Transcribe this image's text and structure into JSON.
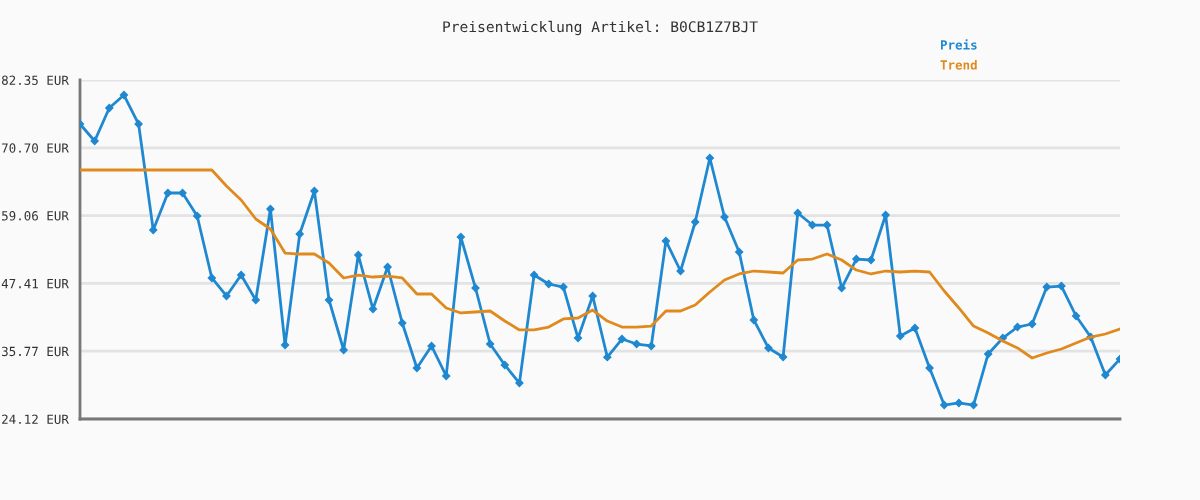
{
  "chart_data": {
    "type": "line",
    "title": "Preisentwicklung Artikel: B0CB1Z7BJT",
    "categories": [
      null,
      null,
      null,
      null,
      null,
      null,
      null,
      null,
      null,
      null,
      null,
      null,
      null,
      null,
      null,
      null,
      null,
      null,
      null,
      null,
      null,
      null,
      null,
      null,
      null,
      null,
      null,
      null,
      null,
      null,
      null,
      null,
      null,
      null,
      null,
      null,
      null,
      null,
      null,
      null,
      null,
      null,
      null,
      null,
      null,
      null,
      null,
      null,
      null,
      null,
      null,
      null,
      null,
      null,
      null,
      null,
      null,
      null,
      null,
      null,
      null,
      null,
      null,
      null,
      null,
      null,
      null,
      null,
      null,
      null,
      null,
      null
    ],
    "series": [
      {
        "name": "Preis",
        "color": "#1f88d0",
        "marker": "diamond",
        "values": [
          74.79,
          71.87,
          77.54,
          79.77,
          74.79,
          56.58,
          62.94,
          62.94,
          58.99,
          48.34,
          45.25,
          48.85,
          44.56,
          60.19,
          36.83,
          55.9,
          63.28,
          44.56,
          35.97,
          52.29,
          43.01,
          50.23,
          40.61,
          32.88,
          36.66,
          31.51,
          55.38,
          46.62,
          37.0,
          33.4,
          30.3,
          48.85,
          47.31,
          46.79,
          38.03,
          45.25,
          34.74,
          37.86,
          37.0,
          36.66,
          54.7,
          49.54,
          57.96,
          68.95,
          58.82,
          52.81,
          41.13,
          36.32,
          34.77,
          59.5,
          57.44,
          57.44,
          46.62,
          51.6,
          51.43,
          59.16,
          38.38,
          39.75,
          32.88,
          26.52,
          26.87,
          26.52,
          35.29,
          38.03,
          39.92,
          40.44,
          46.79,
          46.96,
          41.81,
          38.2,
          31.68,
          34.43
        ]
      },
      {
        "name": "Trend",
        "color": "#e08a1e",
        "marker": "none",
        "values": [
          66.89,
          66.89,
          66.89,
          66.89,
          66.89,
          66.89,
          66.89,
          66.89,
          66.89,
          66.89,
          64.14,
          61.74,
          58.47,
          56.76,
          52.63,
          52.46,
          52.46,
          50.92,
          48.34,
          48.85,
          48.51,
          48.68,
          48.34,
          45.59,
          45.59,
          43.19,
          42.33,
          42.5,
          42.67,
          40.95,
          39.41,
          39.41,
          39.92,
          41.3,
          41.47,
          42.84,
          40.95,
          39.92,
          39.92,
          40.09,
          42.67,
          42.67,
          43.7,
          45.93,
          47.99,
          49.03,
          49.54,
          49.37,
          49.2,
          51.43,
          51.6,
          52.46,
          51.43,
          49.71,
          49.03,
          49.54,
          49.37,
          49.54,
          49.37,
          46.11,
          43.19,
          40.09,
          38.89,
          37.52,
          36.32,
          34.6,
          35.46,
          36.14,
          37.17,
          38.2,
          38.72,
          39.58
        ]
      }
    ],
    "ylim": [
      24.12,
      82.35
    ],
    "yticks": [
      {
        "value": 24.12,
        "label": "24.12 EUR"
      },
      {
        "value": 35.77,
        "label": "35.77 EUR"
      },
      {
        "value": 47.41,
        "label": "47.41 EUR"
      },
      {
        "value": 59.06,
        "label": "59.06 EUR"
      },
      {
        "value": 70.7,
        "label": "70.70 EUR"
      },
      {
        "value": 82.35,
        "label": "82.35 EUR"
      }
    ],
    "grid": "y",
    "legend": "top right",
    "line_style": "solid"
  }
}
